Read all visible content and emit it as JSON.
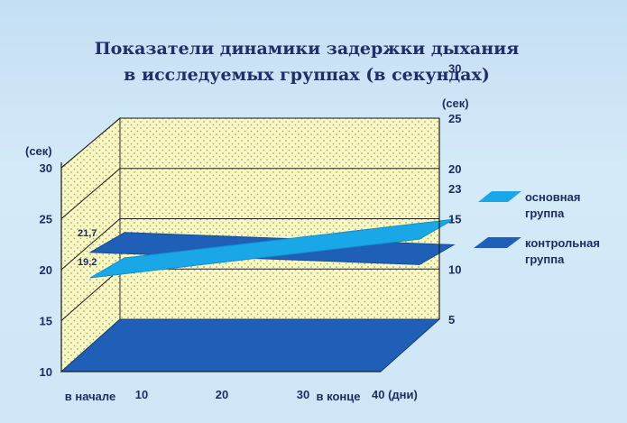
{
  "chart_data": {
    "type": "line",
    "title": "Показатели динамики задержки дыхания\nв исследуемых группах (в секундах)",
    "y_unit": "(сек)",
    "y_ticks_left": [
      "10",
      "15",
      "20",
      "25",
      "30"
    ],
    "y_ticks_right": [
      "5",
      "10",
      "15",
      "20",
      "25",
      "30"
    ],
    "x_ticks": [
      "10",
      "20",
      "30",
      "40 (дни)"
    ],
    "x_category_labels": [
      "в начале",
      "в конце"
    ],
    "ylim": [
      10,
      30
    ],
    "grid": true,
    "legend_position": "right",
    "series": [
      {
        "name": "основная группа",
        "color": "#1aa7e8",
        "x": [
          "в начале",
          "в конце"
        ],
        "values": [
          19.2,
          23
        ],
        "data_labels": [
          "19,2",
          "23"
        ]
      },
      {
        "name": "контрольная группа",
        "color": "#1f5fb8",
        "x": [
          "в начале",
          "в конце"
        ],
        "values": [
          21.7,
          20.5
        ],
        "data_labels": [
          "21,7",
          ""
        ]
      }
    ]
  },
  "legend": {
    "items": [
      {
        "line1": "основная",
        "line2": "группа",
        "color": "#1aa7e8"
      },
      {
        "line1": "контрольная",
        "line2": "группа",
        "color": "#1f5fb8"
      }
    ]
  }
}
